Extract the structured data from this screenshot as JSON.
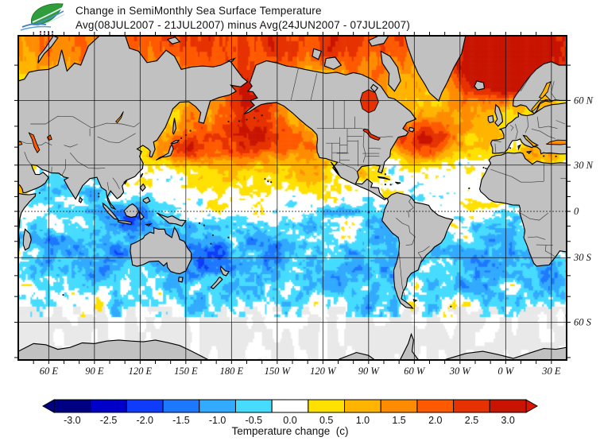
{
  "header": {
    "title_line1": "Change in SemiMonthly Sea Surface Temperature",
    "title_line2": "Avg(08JUL2007 - 21JUL2007) minus Avg(24JUN2007 - 07JUL2007)"
  },
  "logo": {
    "type": "green-leaf-with-blue-waves-emblem"
  },
  "chart_data": {
    "type": "heatmap",
    "title": "Change in SemiMonthly Sea Surface Temperature",
    "subtitle": "Avg(08JUL2007 - 21JUL2007) minus Avg(24JUN2007 - 07JUL2007)",
    "projection": "mercator",
    "lon_range_deg_east": [
      40,
      400
    ],
    "lat_range": [
      -70.6,
      75.9
    ],
    "grid": true,
    "x_axis": {
      "tick_labels": [
        {
          "text": "60 E",
          "lon": 60
        },
        {
          "text": "90 E",
          "lon": 90
        },
        {
          "text": "120 E",
          "lon": 120
        },
        {
          "text": "150 E",
          "lon": 150
        },
        {
          "text": "180 E",
          "lon": 180
        },
        {
          "text": "150 W",
          "lon": 210
        },
        {
          "text": "120 W",
          "lon": 240
        },
        {
          "text": "90 W",
          "lon": 270
        },
        {
          "text": "60 W",
          "lon": 300
        },
        {
          "text": "30 W",
          "lon": 330
        },
        {
          "text": "0 W",
          "lon": 360
        },
        {
          "text": "30 E",
          "lon": 390
        }
      ]
    },
    "y_axis": {
      "tick_labels": [
        {
          "text": "60 N",
          "lat": 60
        },
        {
          "text": "30 N",
          "lat": 30
        },
        {
          "text": "0",
          "lat": 0
        },
        {
          "text": "30 S",
          "lat": -30
        },
        {
          "text": "60 S",
          "lat": -60
        }
      ]
    },
    "colorbar": {
      "label": "Temperature change  (c)",
      "interval": 0.5,
      "tick_labels": [
        "-3.0",
        "-2.5",
        "-2.0",
        "-1.5",
        "-1.0",
        "-0.5",
        "0.0",
        "0.5",
        "1.0",
        "1.5",
        "2.0",
        "2.5",
        "3.0"
      ],
      "colors": [
        "#000082",
        "#0000C8",
        "#0F3CFA",
        "#1E78FF",
        "#32AAFF",
        "#46DCFF",
        "#FFFFFF",
        "#FFE100",
        "#FFB400",
        "#FF8C00",
        "#FF5A00",
        "#E63200",
        "#C81400"
      ],
      "left_arrow_color": "#000082",
      "right_arrow_color": "#DC1400"
    },
    "map_colors": {
      "land": "#C1C1C1",
      "coast": "#000000",
      "country_border": "#3C3C3C",
      "no_data_ice": "#E9E9E9",
      "grid_line": "#000000"
    },
    "field_regions": [
      {
        "name": "arctic-band-warm",
        "lon": 220,
        "lat": 76,
        "sx": 190,
        "sy": 7,
        "amp": 2.4
      },
      {
        "name": "barents-warm",
        "lon": 372,
        "lat": 71,
        "sx": 26,
        "sy": 5.5,
        "amp": 2.2
      },
      {
        "name": "bering-warm",
        "lon": 190,
        "lat": 62,
        "sx": 16,
        "sy": 6,
        "amp": 2.0
      },
      {
        "name": "nw-pacific-warm",
        "lon": 175,
        "lat": 45,
        "sx": 30,
        "sy": 9,
        "amp": 1.9
      },
      {
        "name": "np-dateline-warm",
        "lon": 205,
        "lat": 47,
        "sx": 22,
        "sy": 9,
        "amp": 1.5
      },
      {
        "name": "kuroshio-warm",
        "lon": 148,
        "lat": 39,
        "sx": 10,
        "sy": 5,
        "amp": 1.5
      },
      {
        "name": "okhotsk-warm",
        "lon": 148,
        "lat": 55,
        "sx": 8,
        "sy": 5,
        "amp": 0.6
      },
      {
        "name": "ne-pacific-coast-warm",
        "lon": 236,
        "lat": 33,
        "sx": 10,
        "sy": 10,
        "amp": 1.0
      },
      {
        "name": "subtrop-npac-warm",
        "lon": 195,
        "lat": 22,
        "sx": 45,
        "sy": 8,
        "amp": 0.45
      },
      {
        "name": "gulf-stream-warm",
        "lon": 300,
        "lat": 43,
        "sx": 14,
        "sy": 7,
        "amp": 2.0
      },
      {
        "name": "natl-warm",
        "lon": 325,
        "lat": 50,
        "sx": 25,
        "sy": 9,
        "amp": 1.5
      },
      {
        "name": "norwegian-warm",
        "lon": 357,
        "lat": 67,
        "sx": 20,
        "sy": 6,
        "amp": 2.0
      },
      {
        "name": "hudson-warm",
        "lon": 272,
        "lat": 59,
        "sx": 8,
        "sy": 5,
        "amp": 2.2
      },
      {
        "name": "med-warm",
        "lon": 383,
        "lat": 36,
        "sx": 15,
        "sy": 4,
        "amp": 1.1
      },
      {
        "name": "red-sea-warm",
        "lon": 42,
        "lat": 16,
        "sx": 6,
        "sy": 5,
        "amp": 1.2
      },
      {
        "name": "gulf-mexico-warm",
        "lon": 266,
        "lat": 25.5,
        "sx": 7,
        "sy": 3.5,
        "amp": 0.9
      },
      {
        "name": "caribbean-warm",
        "lon": 285,
        "lat": 15,
        "sx": 11,
        "sy": 4.5,
        "amp": 0.35
      },
      {
        "name": "wpac-equator-warm",
        "lon": 168,
        "lat": 4,
        "sx": 28,
        "sy": 6,
        "amp": 0.35
      },
      {
        "name": "itcz-atlantic-warm",
        "lon": 338,
        "lat": 5,
        "sx": 12,
        "sy": 4,
        "amp": 0.5
      },
      {
        "name": "subtrop-natl-pale",
        "lon": 322,
        "lat": 22,
        "sx": 24,
        "sy": 7,
        "amp": -0.35
      },
      {
        "name": "arabian-cool",
        "lon": 62,
        "lat": 14,
        "sx": 11,
        "sy": 8,
        "amp": -0.85
      },
      {
        "name": "bengal-cool",
        "lon": 87,
        "lat": 13,
        "sx": 8,
        "sy": 6,
        "amp": -0.6
      },
      {
        "name": "indonesia-cool",
        "lon": 116,
        "lat": -4,
        "sx": 17,
        "sy": 9,
        "amp": -1.3
      },
      {
        "name": "guinea-cool",
        "lon": 368,
        "lat": -2,
        "sx": 10,
        "sy": 6,
        "amp": -0.4
      },
      {
        "name": "s-indian-cool",
        "lon": 82,
        "lat": -27,
        "sx": 32,
        "sy": 13,
        "amp": -0.75
      },
      {
        "name": "coral-tasman-cool",
        "lon": 160,
        "lat": -30,
        "sx": 17,
        "sy": 12,
        "amp": -0.9
      },
      {
        "name": "s-pacific-cool",
        "lon": 225,
        "lat": -28,
        "sx": 40,
        "sy": 14,
        "amp": -0.65
      },
      {
        "name": "peru-coast-cool",
        "lon": 282,
        "lat": -13,
        "sx": 7,
        "sy": 10,
        "amp": -0.9
      },
      {
        "name": "eq-east-pacific-cool",
        "lon": 255,
        "lat": 0,
        "sx": 16,
        "sy": 3.5,
        "amp": -0.85
      },
      {
        "name": "s-atlantic-cool",
        "lon": 340,
        "lat": -28,
        "sx": 24,
        "sy": 12,
        "amp": -0.65
      },
      {
        "name": "agulhas-cool",
        "lon": 397,
        "lat": -39,
        "sx": 14,
        "sy": 6,
        "amp": -0.8
      },
      {
        "name": "southern-hemi-cool",
        "lon": 220,
        "lat": -35,
        "sx": 190,
        "sy": 20,
        "amp": -0.45
      }
    ],
    "inland_waters": [
      {
        "name": "caspian-sea",
        "value": 2.2
      },
      {
        "name": "aral-sea",
        "value": 1.8
      },
      {
        "name": "lake-baikal",
        "value": 1.6
      },
      {
        "name": "black-sea-west",
        "value": 1.4
      },
      {
        "name": "black-sea-east",
        "value": 1.4
      },
      {
        "name": "hudson-bay",
        "value": 2.6
      },
      {
        "name": "great-lakes",
        "value": 2.7
      },
      {
        "name": "baltic-sea",
        "value": 0.8
      },
      {
        "name": "gulf-bothnia",
        "value": 0.8
      }
    ]
  }
}
